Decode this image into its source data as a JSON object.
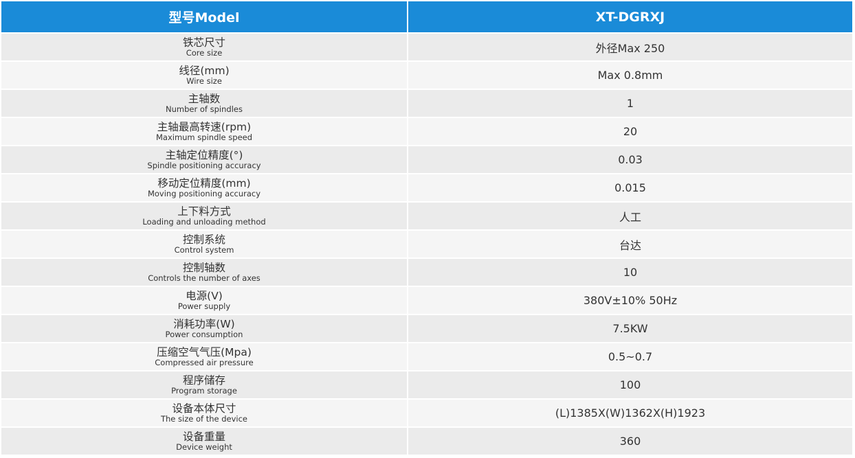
{
  "header": {
    "left": "型号Model",
    "right": "XT-DGRXJ"
  },
  "rows": [
    {
      "zh": "铁芯尺寸",
      "en": "Core size",
      "value": "外径Max 250"
    },
    {
      "zh": "线径(mm)",
      "en": "Wire size",
      "value": "Max 0.8mm"
    },
    {
      "zh": "主轴数",
      "en": "Number of spindles",
      "value": "1"
    },
    {
      "zh": "主轴最高转速(rpm)",
      "en": "Maximum spindle speed",
      "value": "20"
    },
    {
      "zh": "主轴定位精度(°)",
      "en": "Spindle positioning accuracy",
      "value": "0.03"
    },
    {
      "zh": "移动定位精度(mm)",
      "en": "Moving positioning accuracy",
      "value": "0.015"
    },
    {
      "zh": "上下料方式",
      "en": "Loading and unloading method",
      "value": "人工"
    },
    {
      "zh": "控制系统",
      "en": "Control system",
      "value": "台达"
    },
    {
      "zh": "控制轴数",
      "en": "Controls the number of axes",
      "value": "10"
    },
    {
      "zh": "电源(V)",
      "en": "Power supply",
      "value": "380V±10% 50Hz"
    },
    {
      "zh": "消耗功率(W)",
      "en": "Power consumption",
      "value": "7.5KW"
    },
    {
      "zh": "压缩空气气压(Mpa)",
      "en": "Compressed air pressure",
      "value": "0.5~0.7"
    },
    {
      "zh": "程序储存",
      "en": "Program storage",
      "value": "100"
    },
    {
      "zh": "设备本体尺寸",
      "en": "The size of the device",
      "value": "(L)1385X(W)1362X(H)1923"
    },
    {
      "zh": "设备重量",
      "en": "Device weight",
      "value": "360"
    }
  ],
  "colors": {
    "header_bg": "#1a8bd8",
    "row_bg_a": "#ebebeb",
    "row_bg_b": "#f5f5f5",
    "text": "#333333"
  }
}
